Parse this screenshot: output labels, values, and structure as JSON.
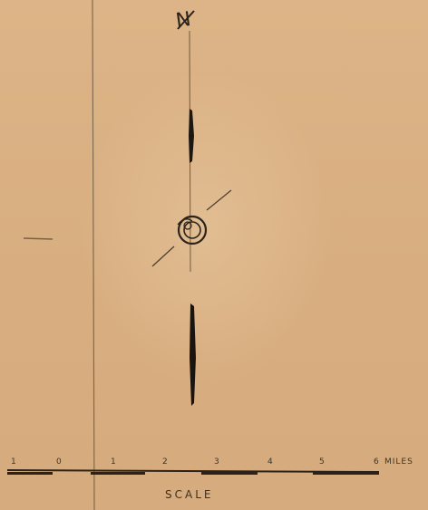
{
  "map": {
    "north_label": "N",
    "scale": {
      "title": "SCALE",
      "unit_label": "MILES",
      "ticks": [
        "1",
        "0",
        "1",
        "2",
        "3",
        "4",
        "5",
        "6"
      ]
    }
  },
  "colors": {
    "paper": "#d9b083",
    "ink": "#2b231b"
  },
  "icons": [
    "north-arrow-icon",
    "compass-rose-icon"
  ]
}
